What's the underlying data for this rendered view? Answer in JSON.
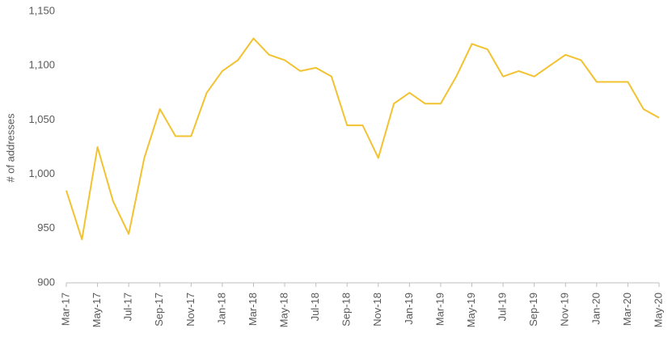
{
  "chart_data": {
    "type": "line",
    "y_label": "# of addresses",
    "categories": [
      "Mar-17",
      null,
      "May-17",
      null,
      "Jul-17",
      null,
      "Sep-17",
      null,
      "Nov-17",
      null,
      "Jan-18",
      null,
      "Mar-18",
      null,
      "May-18",
      null,
      "Jul-18",
      null,
      "Sep-18",
      null,
      "Nov-18",
      null,
      "Jan-19",
      null,
      "Mar-19",
      null,
      "May-19",
      null,
      "Jul-19",
      null,
      "Sep-19",
      null,
      "Nov-19",
      null,
      "Jan-20",
      null,
      "Mar-20",
      null,
      "May-20"
    ],
    "series": [
      {
        "color": "#f2c230",
        "values": [
          985,
          940,
          1025,
          975,
          945,
          1015,
          1060,
          1035,
          1035,
          1075,
          1095,
          1105,
          1125,
          1110,
          1105,
          1095,
          1098,
          1090,
          1045,
          1045,
          1015,
          1065,
          1075,
          1065,
          1065,
          1090,
          1120,
          1115,
          1090,
          1095,
          1090,
          1100,
          1110,
          1105,
          1085,
          1085,
          1085,
          1060,
          1052
        ]
      }
    ],
    "ylim": [
      900,
      1150
    ],
    "yticks": [
      900,
      950,
      {
        "value": 1000,
        "label": "1,000"
      },
      {
        "value": 1050,
        "label": "1,050"
      },
      {
        "value": 1100,
        "label": "1,100"
      },
      {
        "value": 1150,
        "label": "1,150"
      }
    ],
    "grid": false
  }
}
